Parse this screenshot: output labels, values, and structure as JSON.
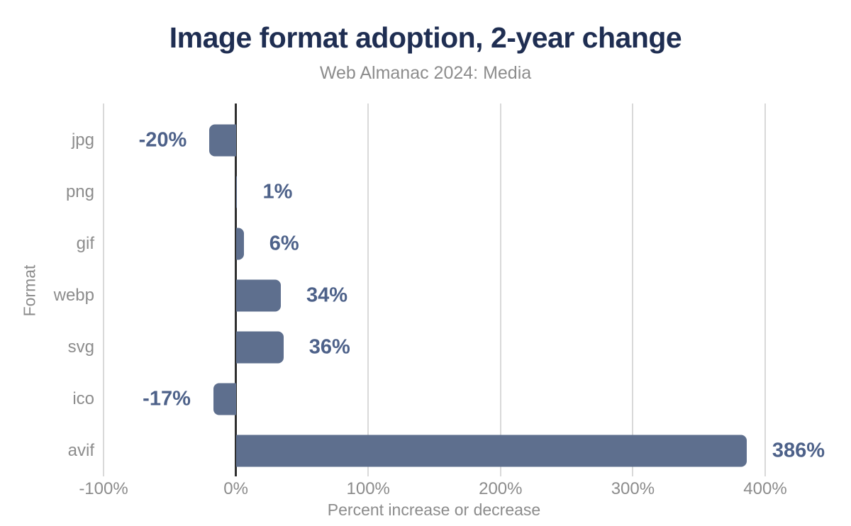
{
  "chart_data": {
    "type": "bar",
    "orientation": "horizontal",
    "title": "Image format adoption, 2-year change",
    "subtitle": "Web Almanac 2024: Media",
    "xlabel": "Percent increase or decrease",
    "ylabel": "Format",
    "categories": [
      "jpg",
      "png",
      "gif",
      "webp",
      "svg",
      "ico",
      "avif"
    ],
    "values": [
      -20,
      1,
      6,
      34,
      36,
      -17,
      386
    ],
    "value_labels": [
      "-20%",
      "1%",
      "6%",
      "34%",
      "36%",
      "-17%",
      "386%"
    ],
    "xticks": [
      -100,
      0,
      100,
      200,
      300,
      400
    ],
    "xtick_labels": [
      "-100%",
      "0%",
      "100%",
      "200%",
      "300%",
      "400%"
    ],
    "xlim": [
      -100,
      450
    ],
    "grid": true,
    "legend": false
  },
  "colors": {
    "bar": "#5e6f8e",
    "value_label": "#4d6189",
    "title": "#1f2e52",
    "muted_text": "#8c8c8c",
    "gridline": "#d9d9d9",
    "zero_line": "#2f2f2f",
    "background": "#ffffff"
  }
}
